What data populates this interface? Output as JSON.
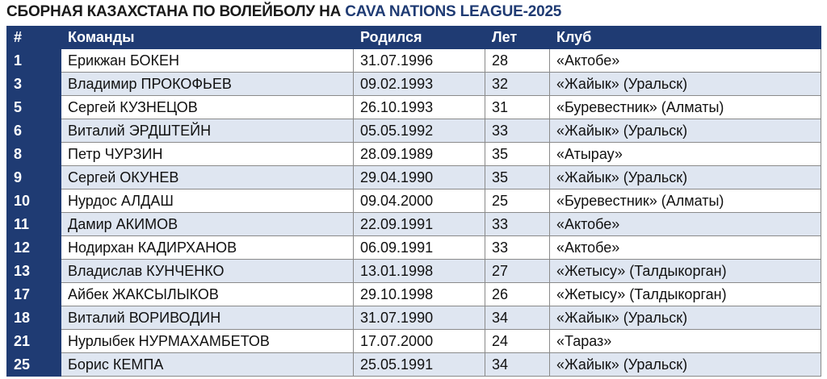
{
  "title": {
    "main": "СБОРНАЯ КАЗАХСТАНА ПО ВОЛЕЙБОЛУ НА ",
    "accent": "CAVA NATIONS LEAGUE-2025"
  },
  "columns": [
    "#",
    "Команды",
    "Родился",
    "Лет",
    "Клуб"
  ],
  "rows": [
    {
      "num": "1",
      "name": "Ерикжан БОКЕН",
      "born": "31.07.1996",
      "age": "28",
      "club": "«Актобе»"
    },
    {
      "num": "3",
      "name": "Владимир ПРОКОФЬЕВ",
      "born": "09.02.1993",
      "age": "32",
      "club": "«Жайык» (Уральск)"
    },
    {
      "num": "5",
      "name": "Сергей КУЗНЕЦОВ",
      "born": "26.10.1993",
      "age": "31",
      "club": "«Буревестник» (Алматы)"
    },
    {
      "num": "6",
      "name": "Виталий ЭРДШТЕЙН",
      "born": "05.05.1992",
      "age": "33",
      "club": "«Жайык» (Уральск)"
    },
    {
      "num": "8",
      "name": "Петр ЧУРЗИН",
      "born": "28.09.1989",
      "age": "35",
      "club": "«Атырау»"
    },
    {
      "num": "9",
      "name": "Сергей ОКУНЕВ",
      "born": "29.04.1990",
      "age": "35",
      "club": "«Жайык» (Уральск)"
    },
    {
      "num": "10",
      "name": "Нурдос АЛДАШ",
      "born": "09.04.2000",
      "age": "25",
      "club": "«Буревестник» (Алматы)"
    },
    {
      "num": "11",
      "name": "Дамир АКИМОВ",
      "born": "22.09.1991",
      "age": "33",
      "club": "«Актобе»"
    },
    {
      "num": "12",
      "name": "Нодирхан КАДИРХАНОВ",
      "born": "06.09.1991",
      "age": "33",
      "club": "«Актобе»"
    },
    {
      "num": "13",
      "name": "Владислав КУНЧЕНКО",
      "born": "13.01.1998",
      "age": "27",
      "club": "«Жетысу» (Талдыкорган)"
    },
    {
      "num": "17",
      "name": "Айбек ЖАКСЫЛЫКОВ",
      "born": "29.10.1998",
      "age": "26",
      "club": "«Жетысу» (Талдыкорган)"
    },
    {
      "num": "18",
      "name": "Виталий ВОРИВОДИН",
      "born": "31.07.1990",
      "age": "34",
      "club": "«Жайык» (Уральск)"
    },
    {
      "num": "21",
      "name": "Нурлыбек НУРМАХАМБЕТОВ",
      "born": "17.07.2000",
      "age": "24",
      "club": "«Тараз»"
    },
    {
      "num": "25",
      "name": "Борис КЕМПА",
      "born": "25.05.1991",
      "age": "34",
      "club": "«Жайык» (Уральск)"
    }
  ],
  "colors": {
    "header_bg": "#1f3b73",
    "band_bg": "#dfe6f1",
    "accent_text": "#1f3b73"
  }
}
